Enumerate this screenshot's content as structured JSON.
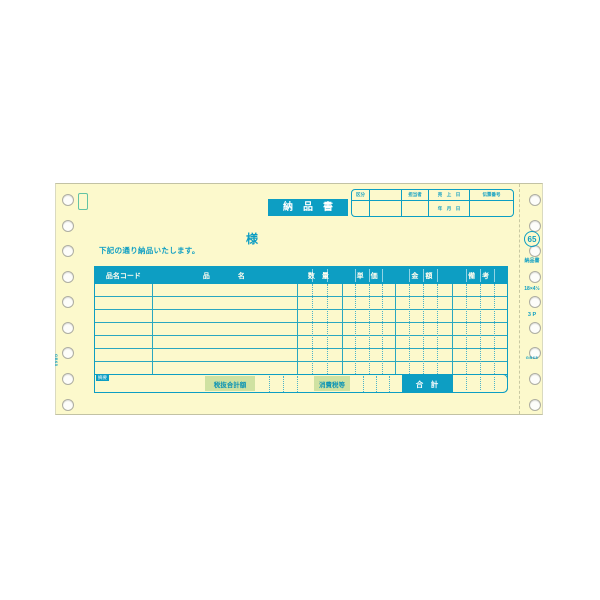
{
  "form": {
    "title": "納　品　書",
    "addressee_suffix": "様",
    "greeting": "下記の通り納品いたします。",
    "header_fields": {
      "category": "区分",
      "person": "担当者",
      "sales_date": "売　上　日",
      "date_sub": "年　月　日",
      "slip_number": "伝票番号"
    },
    "table": {
      "columns": [
        "品名コード",
        "品　　　　名",
        "数　量",
        "単　価",
        "金　額",
        "備　考"
      ],
      "body_row_count": 7
    },
    "totals": {
      "note": "摘要",
      "subtotal": "税抜合計額",
      "tax": "消費税等",
      "total": "合　計"
    },
    "side_tab": {
      "number": "65",
      "name": "納品書",
      "size": "18×4½",
      "parts": "3 P",
      "code_right": "GB65",
      "code_left": "GB65"
    }
  },
  "colors": {
    "accent_teal": "#0d9ec3",
    "paper_yellow": "#fcf9cc",
    "label_green": "#cfe2a2",
    "page_background": "#ffffff"
  }
}
